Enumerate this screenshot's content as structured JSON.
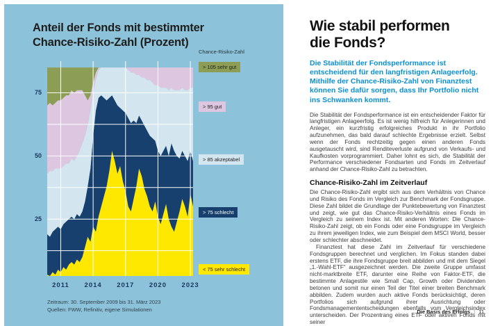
{
  "left_panel": {
    "title_line1": "Anteil der Fonds mit bestimmter",
    "title_line2": "Chance-Risiko-Zahl (Prozent)",
    "footnote_line1": "Zeitraum: 30. September 2009 bis 31. März 2023",
    "footnote_line2": "Quellen: FWW, Refinitiv, eigene Simulationen"
  },
  "chart_data": {
    "type": "area",
    "stacked": true,
    "title": "Anteil der Fonds mit bestimmter Chance-Risiko-Zahl (Prozent)",
    "legend_title": "Chance-Risiko-Zahl",
    "x_start": 2009.75,
    "x_end": 2023.25,
    "x_step": 0.25,
    "x_ticks": [
      2011,
      2014,
      2017,
      2020,
      2023
    ],
    "y_ticks": [
      25,
      50,
      75
    ],
    "y_gridlines": [
      12.5,
      25,
      37.5,
      50,
      62.5,
      75
    ],
    "y_visible_range": [
      2.5,
      87.5
    ],
    "y_clip_max": 85,
    "grid_color": "#ffffff",
    "background_color": "#8dc3da",
    "series": [
      {
        "name": "< 75 sehr schlecht",
        "color": "#ffe800",
        "text_color": "#1d1d1b",
        "values": [
          3,
          2,
          4,
          3,
          5,
          4,
          6,
          5,
          7,
          8,
          7,
          9,
          8,
          10,
          14,
          18,
          16,
          22,
          20,
          26,
          30,
          34,
          38,
          44,
          52,
          48,
          43,
          46,
          40,
          36,
          30,
          28,
          33,
          38,
          45,
          42,
          37,
          34,
          30,
          28,
          32,
          26,
          23,
          27,
          31,
          25,
          22,
          20,
          24,
          28,
          33,
          30,
          26,
          35,
          30
        ]
      },
      {
        "name": "> 75 schlecht",
        "color": "#17406e",
        "text_color": "#ffffff",
        "values": [
          16,
          16,
          16,
          18,
          17,
          17,
          17,
          19,
          18,
          18,
          18,
          18,
          18,
          18,
          18,
          20,
          29,
          36,
          48,
          47,
          44,
          39,
          34,
          29,
          22,
          24,
          27,
          23,
          28,
          31,
          35,
          35,
          31,
          25,
          21,
          22,
          25,
          26,
          28,
          29,
          24,
          26,
          27,
          25,
          23,
          25,
          33,
          32,
          26,
          21,
          19,
          20,
          22,
          17,
          18
        ]
      },
      {
        "name": "> 85 akzeptabel",
        "color": "#d3e5ef",
        "text_color": "#1d1d1b",
        "values": [
          24,
          26,
          24,
          24,
          23,
          24,
          23,
          23,
          22,
          23,
          23,
          23,
          26,
          27,
          26,
          24,
          23,
          17,
          12,
          11,
          12,
          14,
          16,
          15,
          13,
          16,
          17,
          19,
          18,
          18,
          19,
          20,
          19,
          19,
          16,
          17,
          19,
          20,
          22,
          22,
          22,
          26,
          27,
          25,
          23,
          26,
          22,
          24,
          26,
          27,
          25,
          26,
          28,
          25,
          29
        ]
      },
      {
        "name": "> 95 gut",
        "color": "#dcc6e0",
        "text_color": "#1d1d1b",
        "values": [
          27,
          27,
          26,
          26,
          27,
          27,
          27,
          27,
          27,
          27,
          27,
          26,
          24,
          21,
          16,
          10,
          6,
          4,
          3,
          2,
          1,
          1,
          1,
          1,
          1,
          1,
          1,
          1,
          2,
          3,
          3,
          4,
          4,
          4,
          4,
          4,
          5,
          6,
          7,
          8,
          9,
          10,
          11,
          11,
          10,
          11,
          11,
          12,
          12,
          12,
          12,
          13,
          13,
          13,
          13
        ]
      },
      {
        "name": "> 105 sehr gut",
        "color": "#8c9e55",
        "text_color": "#1d1d1b",
        "values": [
          30,
          29,
          30,
          29,
          28,
          28,
          27,
          26,
          26,
          24,
          25,
          24,
          24,
          24,
          26,
          28,
          26,
          21,
          17,
          14,
          13,
          12,
          11,
          11,
          12,
          11,
          12,
          11,
          12,
          12,
          13,
          13,
          13,
          14,
          14,
          15,
          14,
          14,
          13,
          13,
          13,
          12,
          12,
          12,
          13,
          13,
          12,
          12,
          12,
          12,
          11,
          11,
          11,
          10,
          10
        ]
      }
    ]
  },
  "article": {
    "heading_line1": "Wie stabil performen",
    "heading_line2": "die Fonds?",
    "lead": "Die Stabilität der Fondsperformance ist entscheidend für den langfristigen Anlageerfolg. Mithilfe der Chance-Risiko-Zahl von Finanztest können Sie dafür sorgen, dass Ihr Portfolio nicht ins Schwanken kommt.",
    "para1": "Die Stabilität der Fondsperformance ist ein entscheidender Faktor für langfristigen Anlageerfolg. Es ist wenig hilfreich für Anlegerinnen und Anleger, ein kurzfristig erfolgreiches Produkt in ihr Portfolio aufzunehmen, das bald darauf schlechte Ergebnisse erzielt. Selbst wenn der Fonds rechtzeitig gegen einen anderen Fonds ausgetauscht wird, sind Renditeverluste aufgrund von Verkaufs- und Kaufkosten vorprogrammiert. Daher lohnt es sich, die Stabilität der Performance verschiedener Fondsarten und Fonds im Zeitverlauf anhand der Chance-Risiko-Zahl zu betrachten.",
    "subheading": "Chance-Risiko-Zahl im Zeitverlauf",
    "para2": "Die Chance-Risiko-Zahl ergibt sich aus dem Verhältnis von Chance und Risiko des Fonds im Vergleich zur Benchmark der Fondsgruppe. Diese Zahl bildet die Grundlage der Punktebewertung von Finanztest und zeigt, wie gut das Chance-Risiko-Verhältnis eines Fonds im Vergleich zu seinem Index ist. Mit anderen Worten: Die Chance-Risiko-Zahl zeigt, ob ein Fonds oder eine Fondsgruppe im Vergleich zu ihrem jeweiligen Index, wie zum Beispiel dem MSCI World, besser oder schlechter abschneidet.",
    "para3": "Finanztest hat diese Zahl im Zeitverlauf für verschiedene Fondsgruppen berechnet und verglichen. Im Fokus standen dabei erstens ETF, die ihre Fondsgruppe breit abbilden und mit dem Siegel „1.-Wahl-ETF“ ausgezeichnet werden. Die zweite Gruppe umfasst nicht-marktbreite ETF, darunter eine Reihe von Faktor-ETF, die bestimmte Anlagestile wie Small Cap, Growth oder Dividenden betonen und somit nur einen Teil der Titel einer breiten Benchmark abbilden. Zudem wurden auch aktive Fonds berücksichtigt, deren Portfolios sich aufgrund ihrer Ausrichtung oder Fondsmanagemententscheidungen ebenfalls vom Vergleichsindex unterscheiden. Der Prozentrang eines ETF oder aktiven Fonds mit seiner"
  },
  "page": {
    "footer": {
      "section": "Die Basis des Erfolgs",
      "separator": "|",
      "page_number": "11"
    }
  },
  "colors": {
    "panel_background": "#8dc3da",
    "lead_text": "#0b90d2",
    "axis_text": "#17365a",
    "band_sehr_gut": "#8c9e55",
    "band_gut": "#dcc6e0",
    "band_akzeptabel": "#d3e5ef",
    "band_schlecht": "#17406e",
    "band_sehr_schlecht": "#ffe800"
  }
}
